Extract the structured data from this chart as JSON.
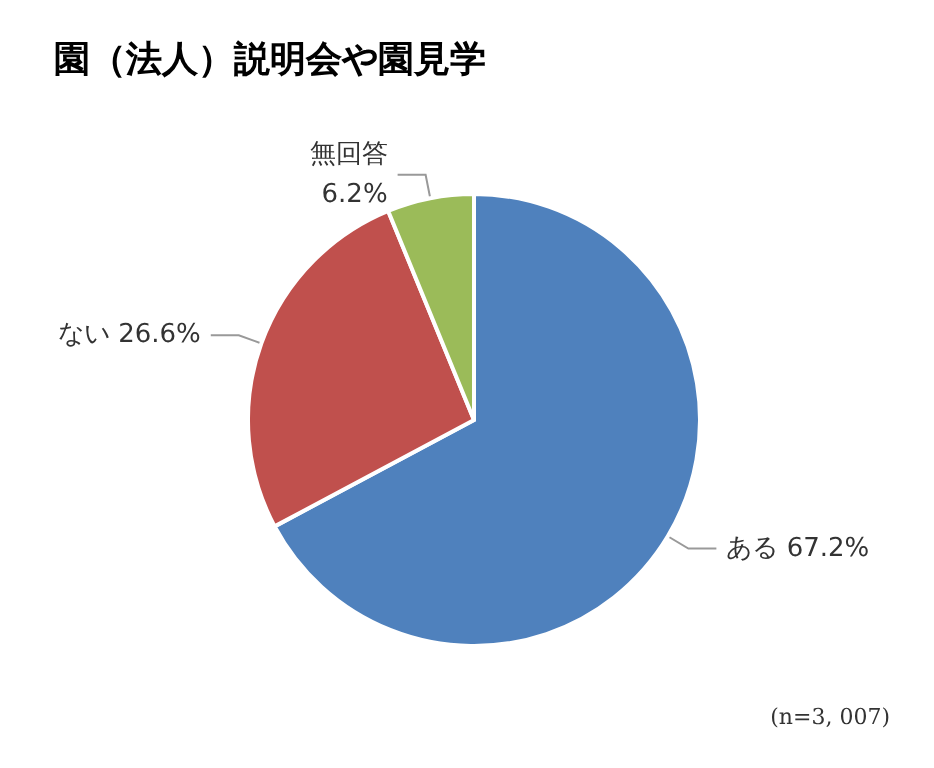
{
  "chart_data": {
    "type": "pie",
    "title": "園（法人）説明会や園見学",
    "categories": [
      "ある",
      "ない",
      "無回答"
    ],
    "values": [
      67.2,
      26.6,
      6.2
    ],
    "value_labels": [
      "67.2%",
      "26.6%",
      "6.2%"
    ],
    "colors": [
      "#4f81bd",
      "#c0504d",
      "#9bbb59"
    ],
    "annotations": [
      "(n=3, 007)"
    ]
  }
}
